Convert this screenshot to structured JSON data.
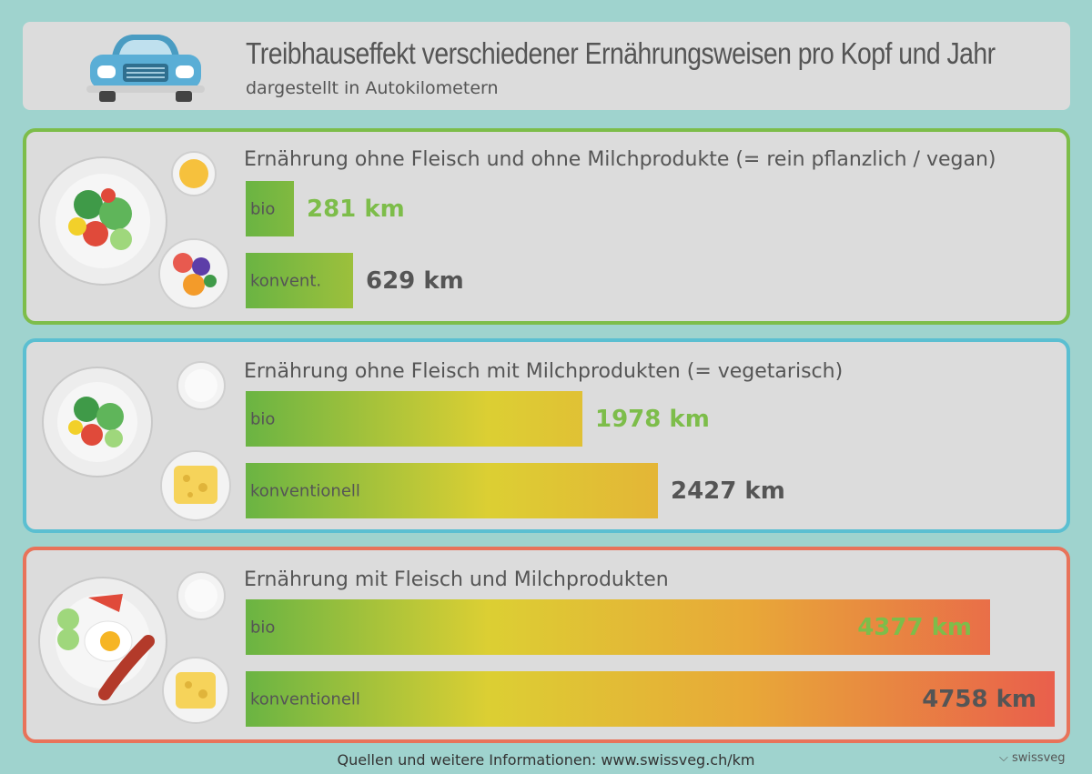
{
  "header": {
    "title": "Treibhauseffekt verschiedener Ernährungsweisen pro Kopf und Jahr",
    "subtitle": "dargestellt in Autokilometern"
  },
  "chart_data": [
    {
      "type": "bar",
      "title": "Ernährung ohne Fleisch und ohne Milchprodukte (= rein pflanzlich / vegan)",
      "categories": [
        "bio",
        "konvent."
      ],
      "values": [
        281,
        629
      ],
      "value_labels": [
        "281 km",
        "629 km"
      ],
      "unit": "km",
      "border_color": "#7dbd4a"
    },
    {
      "type": "bar",
      "title": "Ernährung ohne Fleisch mit Milchprodukten (= vegetarisch)",
      "categories": [
        "bio",
        "konventionell"
      ],
      "values": [
        1978,
        2427
      ],
      "value_labels": [
        "1978 km",
        "2427 km"
      ],
      "unit": "km",
      "border_color": "#5bbfd1"
    },
    {
      "type": "bar",
      "title": "Ernährung mit Fleisch und Milchprodukten",
      "categories": [
        "bio",
        "konventionell"
      ],
      "values": [
        4377,
        4758
      ],
      "value_labels": [
        "4377 km",
        "4758 km"
      ],
      "unit": "km",
      "border_color": "#e8735a"
    }
  ],
  "footer": {
    "text": "Quellen und weitere Informationen: www.swissveg.ch/km",
    "logo_text": "swissveg"
  },
  "colors": {
    "background": "#9fd3ce",
    "panel": "#dcdcdc",
    "bar_start": "#6ab443",
    "bar_mid": "#dccf33",
    "bar_end": "#e95f4c",
    "value_green": "#7dbd4a",
    "value_dark": "#555555"
  }
}
